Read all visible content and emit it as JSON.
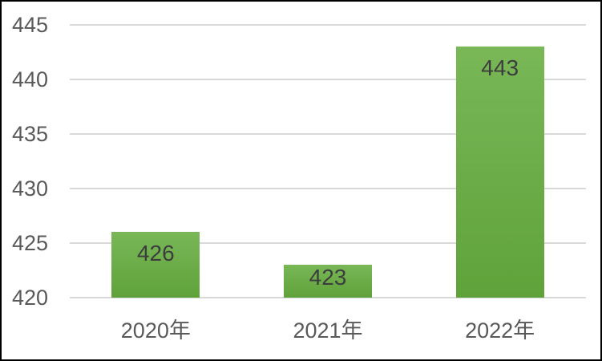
{
  "chart_data": {
    "type": "bar",
    "title": "",
    "categories": [
      "2020年",
      "2021年",
      "2022年"
    ],
    "values": [
      426,
      423,
      443
    ],
    "data_labels": [
      "426",
      "423",
      "443"
    ],
    "xlabel": "",
    "ylabel": "",
    "ylim": [
      420,
      445
    ],
    "yticks": [
      445,
      440,
      435,
      430,
      425,
      420
    ],
    "ytick_labels": [
      "445",
      "440",
      "435",
      "430",
      "425",
      "420"
    ],
    "grid": "horizontal",
    "legend": "none",
    "data_label_position": "inside-end",
    "colors": {
      "bar_gradient_top": "#79b757",
      "bar_gradient_bottom": "#5fa23a",
      "gridline": "#d9d9d9",
      "axis_text": "#595959",
      "data_label_text": "#3d3d3d",
      "background": "#ffffff",
      "frame_border": "#000000"
    }
  }
}
